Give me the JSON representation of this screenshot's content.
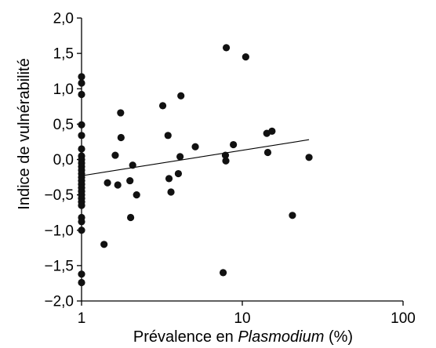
{
  "chart_data": {
    "type": "scatter",
    "title": "",
    "xlabel_parts": [
      "Prévalence en ",
      "Plasmodium",
      " (%)"
    ],
    "ylabel": "Indice de vulnérabilité",
    "x_scale": "log",
    "xlim": [
      1,
      100
    ],
    "ylim": [
      -2.0,
      2.0
    ],
    "x_ticks": [
      1,
      10,
      100
    ],
    "x_tick_labels": [
      "1",
      "10",
      "100"
    ],
    "y_ticks": [
      2.0,
      1.5,
      1.0,
      0.5,
      0.0,
      -0.5,
      -1.0,
      -1.5,
      -2.0
    ],
    "y_tick_labels": [
      "2,0",
      "1,5",
      "1,0",
      "0,5",
      "0,0",
      "−0,5",
      "−1,0",
      "−1,5",
      "−2,0"
    ],
    "grid": false,
    "legend": false,
    "point_color": "#111111",
    "trendline": {
      "x": [
        1,
        26
      ],
      "y": [
        -0.23,
        0.28
      ]
    },
    "points": [
      [
        1,
        1.17
      ],
      [
        1,
        1.08
      ],
      [
        1,
        0.92
      ],
      [
        1,
        0.49
      ],
      [
        1,
        0.34
      ],
      [
        1,
        0.15
      ],
      [
        1,
        0.05
      ],
      [
        1,
        0.0
      ],
      [
        1,
        -0.05
      ],
      [
        1,
        -0.1
      ],
      [
        1,
        -0.15
      ],
      [
        1,
        -0.2
      ],
      [
        1,
        -0.25
      ],
      [
        1,
        -0.3
      ],
      [
        1,
        -0.35
      ],
      [
        1,
        -0.4
      ],
      [
        1,
        -0.45
      ],
      [
        1,
        -0.5
      ],
      [
        1,
        -0.55
      ],
      [
        1,
        -0.6
      ],
      [
        1,
        -0.65
      ],
      [
        1,
        -0.82
      ],
      [
        1,
        -0.88
      ],
      [
        1,
        -1.0
      ],
      [
        1,
        -1.62
      ],
      [
        1,
        -1.74
      ],
      [
        1.38,
        -1.2
      ],
      [
        1.45,
        -0.33
      ],
      [
        1.62,
        0.06
      ],
      [
        1.68,
        -0.36
      ],
      [
        1.75,
        0.66
      ],
      [
        1.76,
        0.31
      ],
      [
        2.0,
        -0.3
      ],
      [
        2.02,
        -0.82
      ],
      [
        2.08,
        -0.08
      ],
      [
        2.2,
        -0.5
      ],
      [
        3.2,
        0.76
      ],
      [
        3.45,
        0.34
      ],
      [
        3.5,
        -0.27
      ],
      [
        3.6,
        -0.46
      ],
      [
        4.0,
        -0.2
      ],
      [
        4.1,
        0.04
      ],
      [
        4.15,
        0.9
      ],
      [
        5.1,
        0.18
      ],
      [
        7.6,
        -1.6
      ],
      [
        7.85,
        0.06
      ],
      [
        7.9,
        -0.02
      ],
      [
        7.95,
        1.58
      ],
      [
        8.8,
        0.21
      ],
      [
        10.5,
        1.45
      ],
      [
        14.2,
        0.37
      ],
      [
        14.4,
        0.1
      ],
      [
        15.3,
        0.4
      ],
      [
        20.5,
        -0.79
      ],
      [
        26.0,
        0.03
      ]
    ]
  }
}
